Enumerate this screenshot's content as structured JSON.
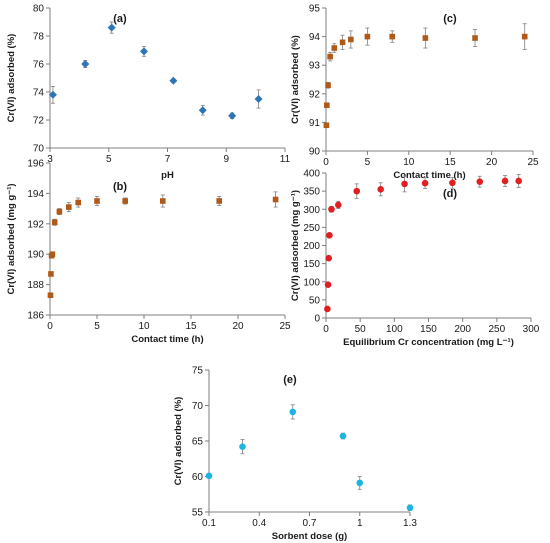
{
  "chart_data": [
    {
      "id": "a",
      "type": "scatter",
      "panel_label": "(a)",
      "xlabel": "pH",
      "ylabel": "Cr(VI) adsorbed (%)",
      "xlim": [
        3,
        11
      ],
      "ylim": [
        70,
        80
      ],
      "xticks": [
        3,
        5,
        7,
        9,
        11
      ],
      "yticks": [
        70,
        72,
        74,
        76,
        78,
        80
      ],
      "marker": "diamond",
      "color": "#2E75B6",
      "grid": false,
      "series": [
        {
          "x": [
            3.1,
            4.2,
            5.1,
            6.2,
            7.2,
            8.2,
            9.2,
            10.1
          ],
          "y": [
            73.8,
            76.0,
            78.6,
            76.9,
            74.8,
            72.7,
            72.3,
            73.5
          ],
          "err": [
            0.6,
            0.25,
            0.4,
            0.35,
            0.1,
            0.35,
            0.2,
            0.65
          ]
        }
      ]
    },
    {
      "id": "b",
      "type": "scatter",
      "panel_label": "(b)",
      "xlabel": "Contact time (h)",
      "ylabel": "Cr(VI) adsorbed (mg g⁻¹)",
      "xlim": [
        0,
        25
      ],
      "ylim": [
        186,
        196
      ],
      "xticks": [
        0,
        5,
        10,
        15,
        20,
        25
      ],
      "yticks": [
        186,
        188,
        190,
        192,
        194,
        196
      ],
      "marker": "square",
      "color": "#B05A1A",
      "grid": false,
      "series": [
        {
          "x": [
            0.05,
            0.1,
            0.17,
            0.25,
            0.5,
            1,
            2,
            3,
            5,
            8,
            12,
            18,
            24
          ],
          "y": [
            187.3,
            188.7,
            189.9,
            190.0,
            192.1,
            192.8,
            193.1,
            193.4,
            193.5,
            193.5,
            193.5,
            193.5,
            193.6
          ],
          "err": [
            0.0,
            0.0,
            0.1,
            0.1,
            0.2,
            0.2,
            0.3,
            0.3,
            0.3,
            0.2,
            0.4,
            0.3,
            0.5
          ]
        }
      ]
    },
    {
      "id": "c",
      "type": "scatter",
      "panel_label": "(c)",
      "xlabel": "Contact time (h)",
      "ylabel": "Cr(VI) adsorbed (%)",
      "xlim": [
        0,
        25
      ],
      "ylim": [
        90,
        95
      ],
      "xticks": [
        0,
        5,
        10,
        15,
        20,
        25
      ],
      "yticks": [
        90,
        91,
        92,
        93,
        94,
        95
      ],
      "marker": "square",
      "color": "#B05A1A",
      "grid": false,
      "series": [
        {
          "x": [
            0.05,
            0.1,
            0.25,
            0.5,
            1,
            2,
            3,
            5,
            8,
            12,
            18,
            24
          ],
          "y": [
            90.9,
            91.6,
            92.3,
            93.3,
            93.6,
            93.8,
            93.9,
            94.0,
            94.0,
            93.95,
            93.95,
            94.0
          ],
          "err": [
            0.0,
            0.0,
            0.1,
            0.15,
            0.15,
            0.25,
            0.3,
            0.3,
            0.2,
            0.35,
            0.3,
            0.45
          ]
        }
      ]
    },
    {
      "id": "d",
      "type": "scatter",
      "panel_label": "(d)",
      "xlabel": "Equilibrium Cr concentration (mg L⁻¹)",
      "ylabel": "Cr(VI) adsorbed (mg g⁻¹)",
      "xlim": [
        0,
        300
      ],
      "ylim": [
        0,
        400
      ],
      "xticks": [
        0,
        50,
        100,
        150,
        200,
        250,
        300
      ],
      "yticks": [
        0,
        50,
        100,
        150,
        200,
        250,
        300,
        350,
        400
      ],
      "marker": "circle",
      "color": "#E02020",
      "grid": false,
      "series": [
        {
          "x": [
            2,
            3,
            4,
            5,
            8,
            18,
            45,
            80,
            115,
            145,
            185,
            225,
            262,
            282
          ],
          "y": [
            25,
            92,
            165,
            228,
            300,
            312,
            350,
            355,
            370,
            372,
            373,
            376,
            378,
            378
          ],
          "err": [
            0,
            0,
            0,
            0,
            8,
            10,
            20,
            18,
            22,
            15,
            15,
            15,
            15,
            18
          ]
        }
      ]
    },
    {
      "id": "e",
      "type": "scatter",
      "panel_label": "(e)",
      "xlabel": "Sorbent dose (g)",
      "ylabel": "Cr(VI) adsorbed (%)",
      "xlim": [
        0.1,
        1.3
      ],
      "ylim": [
        55,
        75
      ],
      "xticks": [
        "0.1",
        "0.4",
        "0.7",
        "1",
        "1.3"
      ],
      "yticks": [
        55,
        60,
        65,
        70,
        75
      ],
      "marker": "circle",
      "color": "#1CB4E0",
      "grid": false,
      "series": [
        {
          "x": [
            0.1,
            0.3,
            0.6,
            0.9,
            1.0,
            1.3
          ],
          "y": [
            60.1,
            64.2,
            69.1,
            65.7,
            59.1,
            55.6
          ],
          "err": [
            0.3,
            1.0,
            1.0,
            0.4,
            0.9,
            0.4
          ]
        }
      ]
    }
  ]
}
